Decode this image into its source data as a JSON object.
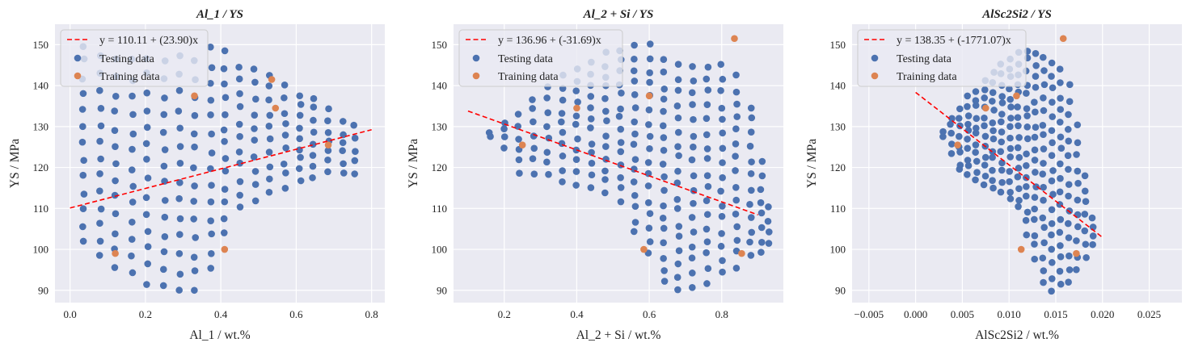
{
  "colors": {
    "background": "#eaeaf2",
    "grid": "#ffffff",
    "testing": "#4c72b0",
    "training": "#dd8452",
    "fit_line": "#ff0000"
  },
  "chart_data": [
    {
      "type": "scatter",
      "title": "Al_1 / YS",
      "xlabel": "Al_1 / wt.%",
      "ylabel": "YS / MPa",
      "xlim": [
        -0.04,
        0.835
      ],
      "ylim": [
        87,
        155
      ],
      "xticks": [
        0.0,
        0.2,
        0.4,
        0.6,
        0.8
      ],
      "xtick_labels": [
        "0.0",
        "0.2",
        "0.4",
        "0.6",
        "0.8"
      ],
      "yticks": [
        90,
        100,
        110,
        120,
        130,
        140,
        150
      ],
      "ytick_labels": [
        "90",
        "100",
        "110",
        "120",
        "130",
        "140",
        "150"
      ],
      "grid": true,
      "legend_position": "top-left",
      "legend": [
        "y = 110.11 + (23.90)x",
        "Testing data",
        "Training data"
      ],
      "fit": {
        "label": "y = 110.11 + (23.90)x",
        "intercept": 110.11,
        "slope": 23.9,
        "x_range": [
          0.0,
          0.8
        ]
      },
      "series": [
        {
          "name": "Testing data",
          "columns": [
            {
              "x": 0.035,
              "ymin": 102,
              "ymax": 150,
              "n": 13
            },
            {
              "x": 0.08,
              "ymin": 98,
              "ymax": 147,
              "n": 13
            },
            {
              "x": 0.12,
              "ymin": 96,
              "ymax": 146,
              "n": 13
            },
            {
              "x": 0.165,
              "ymin": 94,
              "ymax": 146,
              "n": 13
            },
            {
              "x": 0.205,
              "ymin": 92,
              "ymax": 147,
              "n": 14
            },
            {
              "x": 0.25,
              "ymin": 91,
              "ymax": 146,
              "n": 14
            },
            {
              "x": 0.29,
              "ymin": 90,
              "ymax": 147,
              "n": 14
            },
            {
              "x": 0.33,
              "ymin": 90,
              "ymax": 146,
              "n": 14
            },
            {
              "x": 0.375,
              "ymin": 95,
              "ymax": 149,
              "n": 14
            },
            {
              "x": 0.41,
              "ymin": 104,
              "ymax": 148,
              "n": 13
            },
            {
              "x": 0.45,
              "ymin": 110,
              "ymax": 145,
              "n": 11
            },
            {
              "x": 0.49,
              "ymin": 112,
              "ymax": 144,
              "n": 10
            },
            {
              "x": 0.53,
              "ymin": 114,
              "ymax": 143,
              "n": 10
            },
            {
              "x": 0.57,
              "ymin": 115,
              "ymax": 140,
              "n": 9
            },
            {
              "x": 0.61,
              "ymin": 117,
              "ymax": 138,
              "n": 9
            },
            {
              "x": 0.645,
              "ymin": 118,
              "ymax": 137,
              "n": 8
            },
            {
              "x": 0.685,
              "ymin": 119,
              "ymax": 134,
              "n": 7
            },
            {
              "x": 0.725,
              "ymin": 119,
              "ymax": 131,
              "n": 6
            },
            {
              "x": 0.755,
              "ymin": 119,
              "ymax": 130,
              "n": 5
            }
          ]
        },
        {
          "name": "Training data",
          "points": [
            [
              0.12,
              99
            ],
            [
              0.33,
              137.5
            ],
            [
              0.41,
              100
            ],
            [
              0.535,
              141.5
            ],
            [
              0.545,
              134.5
            ],
            [
              0.685,
              125.5
            ]
          ]
        }
      ]
    },
    {
      "type": "scatter",
      "title": "Al_2 + Si / YS",
      "xlabel": "Al_2 + Si / wt.%",
      "ylabel": "YS / MPa",
      "xlim": [
        0.06,
        0.97
      ],
      "ylim": [
        87,
        155
      ],
      "xticks": [
        0.2,
        0.4,
        0.6,
        0.8
      ],
      "xtick_labels": [
        "0.2",
        "0.4",
        "0.6",
        "0.8"
      ],
      "yticks": [
        90,
        100,
        110,
        120,
        130,
        140,
        150
      ],
      "ytick_labels": [
        "90",
        "100",
        "110",
        "120",
        "130",
        "140",
        "150"
      ],
      "grid": true,
      "legend_position": "top-left",
      "legend": [
        "y = 136.96 + (-31.69)x",
        "Testing data",
        "Training data"
      ],
      "fit": {
        "label": "y = 136.96 + (-31.69)x",
        "intercept": 136.96,
        "slope": -31.69,
        "x_range": [
          0.1,
          0.9
        ]
      },
      "series": [
        {
          "name": "Testing data",
          "columns": [
            {
              "x": 0.16,
              "ymin": 127,
              "ymax": 128,
              "n": 2
            },
            {
              "x": 0.2,
              "ymin": 125,
              "ymax": 131,
              "n": 4
            },
            {
              "x": 0.24,
              "ymin": 119,
              "ymax": 133,
              "n": 6
            },
            {
              "x": 0.28,
              "ymin": 119,
              "ymax": 137,
              "n": 7
            },
            {
              "x": 0.32,
              "ymin": 118,
              "ymax": 140,
              "n": 8
            },
            {
              "x": 0.36,
              "ymin": 117,
              "ymax": 142,
              "n": 10
            },
            {
              "x": 0.4,
              "ymin": 116,
              "ymax": 144,
              "n": 11
            },
            {
              "x": 0.44,
              "ymin": 115,
              "ymax": 146,
              "n": 12
            },
            {
              "x": 0.48,
              "ymin": 114,
              "ymax": 148,
              "n": 13
            },
            {
              "x": 0.52,
              "ymin": 112,
              "ymax": 149,
              "n": 14
            },
            {
              "x": 0.56,
              "ymin": 104,
              "ymax": 150,
              "n": 16
            },
            {
              "x": 0.6,
              "ymin": 99,
              "ymax": 150,
              "n": 17
            },
            {
              "x": 0.64,
              "ymin": 92,
              "ymax": 146,
              "n": 18
            },
            {
              "x": 0.68,
              "ymin": 90,
              "ymax": 145,
              "n": 18
            },
            {
              "x": 0.72,
              "ymin": 91,
              "ymax": 145,
              "n": 17
            },
            {
              "x": 0.76,
              "ymin": 92,
              "ymax": 145,
              "n": 17
            },
            {
              "x": 0.8,
              "ymin": 94,
              "ymax": 145,
              "n": 16
            },
            {
              "x": 0.84,
              "ymin": 96,
              "ymax": 142,
              "n": 15
            },
            {
              "x": 0.88,
              "ymin": 98,
              "ymax": 135,
              "n": 12
            },
            {
              "x": 0.91,
              "ymin": 99,
              "ymax": 121,
              "n": 8
            },
            {
              "x": 0.93,
              "ymin": 102,
              "ymax": 110,
              "n": 4
            }
          ]
        },
        {
          "name": "Training data",
          "points": [
            [
              0.25,
              125.5
            ],
            [
              0.4,
              134.5
            ],
            [
              0.585,
              100
            ],
            [
              0.6,
              137.5
            ],
            [
              0.835,
              151.5
            ],
            [
              0.855,
              99
            ]
          ]
        }
      ]
    },
    {
      "type": "scatter",
      "title": "AlSc2Si2 / YS",
      "xlabel": "AlSc2Si2 / wt.%",
      "ylabel": "YS / MPa",
      "xlim": [
        -0.0068,
        0.0285
      ],
      "ylim": [
        87,
        155
      ],
      "xticks": [
        -0.005,
        0.0,
        0.005,
        0.01,
        0.015,
        0.02,
        0.025
      ],
      "xtick_labels": [
        "−0.005",
        "0.000",
        "0.005",
        "0.010",
        "0.015",
        "0.020",
        "0.025"
      ],
      "yticks": [
        90,
        100,
        110,
        120,
        130,
        140,
        150
      ],
      "ytick_labels": [
        "90",
        "100",
        "110",
        "120",
        "130",
        "140",
        "150"
      ],
      "grid": true,
      "legend_position": "top-left",
      "legend": [
        "y = 138.35 + (-1771.07)x",
        "Testing data",
        "Training data"
      ],
      "fit": {
        "label": "y = 138.35 + (-1771.07)x",
        "intercept": 138.35,
        "slope": -1771.07,
        "x_range": [
          0.0,
          0.02
        ]
      },
      "series": [
        {
          "name": "Testing data",
          "columns": [
            {
              "x": 0.003,
              "ymin": 127,
              "ymax": 129,
              "n": 2
            },
            {
              "x": 0.0038,
              "ymin": 124,
              "ymax": 132,
              "n": 5
            },
            {
              "x": 0.0047,
              "ymin": 119,
              "ymax": 134,
              "n": 8
            },
            {
              "x": 0.0056,
              "ymin": 118,
              "ymax": 137,
              "n": 10
            },
            {
              "x": 0.0065,
              "ymin": 117,
              "ymax": 139,
              "n": 11
            },
            {
              "x": 0.0074,
              "ymin": 116,
              "ymax": 141,
              "n": 12
            },
            {
              "x": 0.0083,
              "ymin": 115,
              "ymax": 143,
              "n": 13
            },
            {
              "x": 0.0092,
              "ymin": 114,
              "ymax": 145,
              "n": 14
            },
            {
              "x": 0.0101,
              "ymin": 112,
              "ymax": 147,
              "n": 15
            },
            {
              "x": 0.011,
              "ymin": 110,
              "ymax": 148,
              "n": 16
            },
            {
              "x": 0.0119,
              "ymin": 104,
              "ymax": 149,
              "n": 17
            },
            {
              "x": 0.0128,
              "ymin": 98,
              "ymax": 148,
              "n": 18
            },
            {
              "x": 0.0137,
              "ymin": 92,
              "ymax": 147,
              "n": 18
            },
            {
              "x": 0.0146,
              "ymin": 90,
              "ymax": 146,
              "n": 18
            },
            {
              "x": 0.0155,
              "ymin": 91,
              "ymax": 144,
              "n": 17
            },
            {
              "x": 0.0164,
              "ymin": 92,
              "ymax": 140,
              "n": 15
            },
            {
              "x": 0.0173,
              "ymin": 95,
              "ymax": 130,
              "n": 11
            },
            {
              "x": 0.0182,
              "ymin": 98,
              "ymax": 118,
              "n": 7
            },
            {
              "x": 0.019,
              "ymin": 101,
              "ymax": 108,
              "n": 4
            }
          ]
        },
        {
          "name": "Training data",
          "points": [
            [
              0.0045,
              125.5
            ],
            [
              0.0075,
              134.5
            ],
            [
              0.0108,
              137.5
            ],
            [
              0.0113,
              100
            ],
            [
              0.0158,
              151.5
            ],
            [
              0.0172,
              99
            ]
          ]
        }
      ]
    }
  ]
}
